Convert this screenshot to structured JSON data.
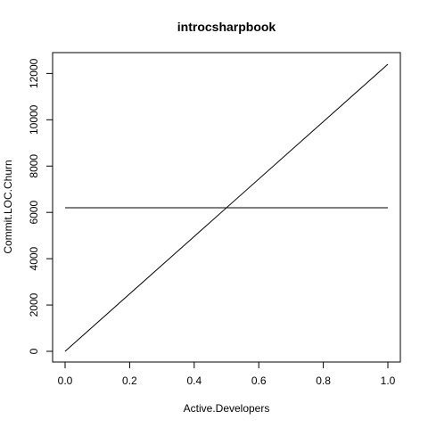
{
  "chart_data": {
    "type": "line",
    "title": "introcsharpbook",
    "xlabel": "Active.Developers",
    "ylabel": "Commit.LOC.Churn",
    "xlim": [
      0,
      1
    ],
    "ylim": [
      0,
      12400
    ],
    "x_ticks": [
      0.0,
      0.2,
      0.4,
      0.6,
      0.8,
      1.0
    ],
    "x_tick_labels": [
      "0.0",
      "0.2",
      "0.4",
      "0.6",
      "0.8",
      "1.0"
    ],
    "y_ticks": [
      0,
      2000,
      4000,
      6000,
      8000,
      10000,
      12000
    ],
    "y_tick_labels": [
      "0",
      "2000",
      "4000",
      "6000",
      "8000",
      "10000",
      "12000"
    ],
    "grid": false,
    "series": [
      {
        "x": [
          0,
          1
        ],
        "y": [
          0,
          12400
        ]
      },
      {
        "x": [
          0,
          1
        ],
        "y": [
          6200,
          6200
        ]
      }
    ]
  }
}
